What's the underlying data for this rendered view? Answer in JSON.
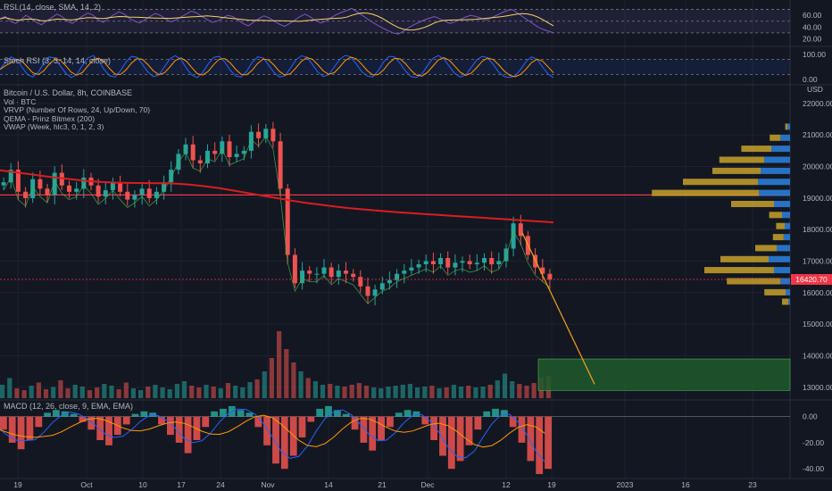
{
  "colors": {
    "background": "#131722",
    "grid": "#1e222d",
    "text": "#b2b5be",
    "up": "#26a69a",
    "down": "#ef5350",
    "ema": "#d81e22",
    "support_line": "#f23645",
    "rsi_line": "#7e57c2",
    "rsi_ma": "#f5d365",
    "stoch_k": "#2962ff",
    "stoch_d": "#ff9800",
    "vrvp_up": "#2a7cd6",
    "vrvp_down": "#c8a02a",
    "projection": "#f7a21b",
    "target_box": "#1f5a2b"
  },
  "rsi_pane": {
    "title": "RSI (14, close, SMA, 14, 2)",
    "ticks": [
      "60.00",
      "40.00",
      "20.00"
    ],
    "tick_values": [
      60,
      40,
      20
    ],
    "ylim": [
      10,
      80
    ],
    "overbought": 70,
    "oversold": 30,
    "values": [
      54,
      58,
      50,
      46,
      52,
      60,
      55,
      48,
      44,
      50,
      56,
      62,
      58,
      50,
      46,
      53,
      59,
      64,
      60,
      52,
      48,
      55,
      61,
      66,
      62,
      55,
      50,
      47,
      52,
      58,
      63,
      60,
      54,
      49,
      52,
      57,
      62,
      67,
      64,
      58,
      53,
      48,
      50,
      55,
      60,
      58,
      52,
      46,
      42,
      48,
      54,
      59,
      56,
      50,
      45,
      41,
      46,
      52,
      58,
      62,
      57,
      51,
      47,
      50,
      56,
      61,
      65,
      68,
      72,
      66,
      60,
      54,
      48,
      43,
      38,
      34,
      30,
      28,
      33,
      39,
      44,
      48,
      52,
      55,
      58,
      54,
      50,
      46,
      49,
      53,
      57,
      60,
      58,
      55,
      52,
      56,
      60,
      64,
      68,
      70,
      64,
      58,
      52,
      46,
      40,
      36,
      33,
      30
    ]
  },
  "stoch_pane": {
    "title": "Stoch RSI (3, 3, 14, 14, close)",
    "ticks": [
      "100.00",
      "0.00"
    ],
    "tick_values": [
      100,
      0
    ],
    "ylim": [
      -10,
      110
    ],
    "band": [
      20,
      80
    ],
    "values": [
      40,
      70,
      90,
      80,
      50,
      20,
      10,
      30,
      65,
      90,
      85,
      55,
      25,
      8,
      20,
      55,
      85,
      95,
      75,
      40,
      15,
      10,
      35,
      70,
      92,
      88,
      60,
      30,
      12,
      18,
      50,
      82,
      95,
      80,
      45,
      18,
      8,
      28,
      62,
      88,
      92,
      70,
      38,
      14,
      10,
      32,
      68,
      90,
      86,
      58,
      28,
      10,
      15,
      45,
      78,
      94,
      88,
      60,
      30,
      12,
      20,
      50,
      80,
      96,
      90,
      62,
      32,
      14,
      10,
      35,
      70,
      92,
      90,
      64,
      34,
      12,
      8,
      22,
      55,
      84,
      95,
      82,
      52,
      24,
      10,
      18,
      48,
      78,
      92,
      86,
      60,
      30,
      12,
      8,
      14,
      40,
      72,
      90,
      80,
      50,
      22,
      8
    ]
  },
  "price_pane": {
    "title": "Bitcoin / U.S. Dollar, 8h, COINBASE",
    "indicators": [
      "Vol · BTC",
      "VRVP (Number Of Rows, 24, Up/Down, 70)",
      "QEMA - Prinz Bitmex (200)",
      "VWAP (Week, hlc3, 0, 1, 2, 3)"
    ],
    "currency": "USD",
    "ticks": [
      "22000.00",
      "21000.00",
      "20000.00",
      "19000.00",
      "18000.00",
      "17000.00",
      "16000.00",
      "15000.00",
      "14000.00",
      "13000.00"
    ],
    "tick_values": [
      22000,
      21000,
      20000,
      19000,
      18000,
      17000,
      16000,
      15000,
      14000,
      13000
    ],
    "ylim": [
      12600,
      22450
    ],
    "last_price": "16420.70",
    "support_level": 19100,
    "ema_200": [
      19880,
      19820,
      19760,
      19700,
      19640,
      19590,
      19540,
      19510,
      19490,
      19480,
      19475,
      19470,
      19460,
      19430,
      19380,
      19320,
      19240,
      19160,
      19080,
      19000,
      18920,
      18850,
      18790,
      18730,
      18680,
      18640,
      18600,
      18560,
      18530,
      18500,
      18470,
      18440,
      18410,
      18380,
      18350,
      18320,
      18290,
      18260,
      18230
    ],
    "price_path": [
      19500,
      19900,
      19200,
      19000,
      19600,
      19300,
      19100,
      19800,
      19400,
      19200,
      19300,
      19650,
      19400,
      19050,
      19250,
      19500,
      19200,
      18950,
      19100,
      19300,
      19000,
      19200,
      19500,
      19900,
      20400,
      20700,
      20200,
      20100,
      20500,
      20400,
      20800,
      20300,
      20400,
      20500,
      21100,
      20900,
      21200,
      20800,
      19300,
      17200,
      16300,
      16700,
      16600,
      16600,
      16800,
      16500,
      16700,
      16600,
      16500,
      16200,
      15900,
      16100,
      16300,
      16400,
      16600,
      16700,
      16800,
      16900,
      17000,
      16900,
      17100,
      16800,
      16950,
      17000,
      16900,
      16950,
      17100,
      16900,
      17000,
      17400,
      18200,
      17800,
      17200,
      16800,
      16600,
      16420
    ],
    "projection": {
      "from_price": 17900,
      "to_price": 13100
    },
    "target_box": {
      "low": 12900,
      "high": 13900
    },
    "vrvp": [
      {
        "price": 21250,
        "up": 0.05,
        "down": 0.02
      },
      {
        "price": 20900,
        "up": 0.18,
        "down": 0.1
      },
      {
        "price": 20550,
        "up": 0.35,
        "down": 0.28
      },
      {
        "price": 20200,
        "up": 0.48,
        "down": 0.42
      },
      {
        "price": 19850,
        "up": 0.55,
        "down": 0.45
      },
      {
        "price": 19500,
        "up": 0.6,
        "down": 0.7
      },
      {
        "price": 19150,
        "up": 0.58,
        "down": 1.0
      },
      {
        "price": 18800,
        "up": 0.3,
        "down": 0.4
      },
      {
        "price": 18450,
        "up": 0.15,
        "down": 0.12
      },
      {
        "price": 18100,
        "up": 0.1,
        "down": 0.08
      },
      {
        "price": 17750,
        "up": 0.12,
        "down": 0.1
      },
      {
        "price": 17400,
        "up": 0.25,
        "down": 0.2
      },
      {
        "price": 17050,
        "up": 0.4,
        "down": 0.45
      },
      {
        "price": 16700,
        "up": 0.3,
        "down": 0.65
      },
      {
        "price": 16350,
        "up": 0.18,
        "down": 0.5
      },
      {
        "price": 16000,
        "up": 0.08,
        "down": 0.2
      },
      {
        "price": 15700,
        "up": 0.03,
        "down": 0.06
      }
    ]
  },
  "volume": [
    30,
    45,
    22,
    18,
    28,
    35,
    20,
    25,
    40,
    22,
    30,
    26,
    18,
    24,
    32,
    28,
    20,
    35,
    22,
    18,
    26,
    30,
    24,
    20,
    32,
    38,
    28,
    24,
    30,
    26,
    22,
    34,
    28,
    24,
    36,
    42,
    60,
    90,
    150,
    110,
    80,
    60,
    45,
    38,
    30,
    32,
    28,
    26,
    30,
    34,
    28,
    24,
    22,
    26,
    28,
    30,
    32,
    24,
    26,
    28,
    22,
    24,
    30,
    26,
    28,
    24,
    26,
    30,
    40,
    55,
    38,
    32,
    28,
    34,
    46,
    50
  ],
  "macd_pane": {
    "title": "MACD (12, 26, close, 9, EMA, EMA)",
    "ticks": [
      "0.00",
      "-20.00",
      "-40.00"
    ],
    "tick_values": [
      0,
      -20,
      -40
    ],
    "ylim": [
      -46,
      10
    ],
    "hist": [
      -10,
      -20,
      -25,
      -18,
      -8,
      3,
      5,
      4,
      2,
      -4,
      -10,
      -18,
      -22,
      -14,
      -6,
      2,
      4,
      3,
      -6,
      -14,
      -20,
      -28,
      -18,
      -8,
      4,
      6,
      8,
      5,
      3,
      -8,
      -22,
      -36,
      -40,
      -30,
      -16,
      -4,
      6,
      8,
      5,
      2,
      -10,
      -20,
      -26,
      -18,
      -8,
      3,
      5,
      4,
      -6,
      -18,
      -30,
      -40,
      -34,
      -22,
      -10,
      4,
      6,
      5,
      -8,
      -20,
      -34,
      -44,
      -40
    ]
  },
  "x_axis": {
    "labels": [
      "19",
      "Oct",
      "10",
      "17",
      "24",
      "Nov",
      "14",
      "21",
      "Dec",
      "12",
      "19",
      "2023",
      "16",
      "23"
    ]
  }
}
